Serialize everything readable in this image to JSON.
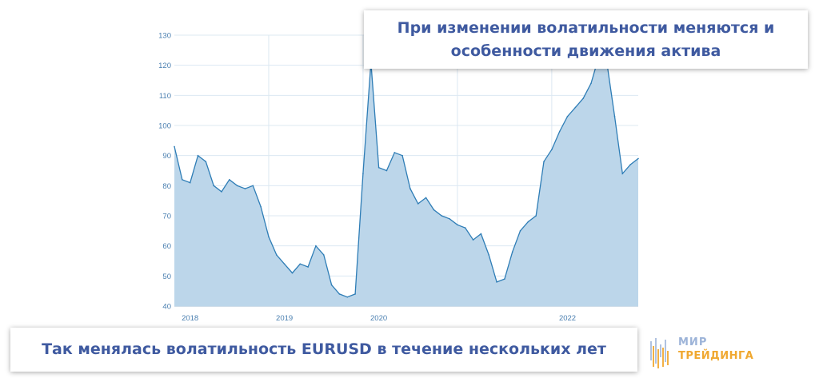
{
  "callouts": {
    "top": "При изменении волатильности меняются и особенности движения актива",
    "bottom": "Так менялась волатильность EURUSD в течение нескольких лет"
  },
  "logo": {
    "line1": "МИР",
    "line2": "ТРЕЙДИНГА"
  },
  "colors": {
    "line": "#2E7DB6",
    "fill": "#BCD6EA",
    "grid": "#DCE8F2",
    "tick_text": "#4A7FB0",
    "callout_text": "#3F5AA0"
  },
  "chart_data": {
    "type": "area",
    "title": "",
    "xlabel": "",
    "ylabel": "",
    "ylim": [
      40,
      130
    ],
    "yticks": [
      40,
      50,
      60,
      70,
      80,
      90,
      100,
      110,
      120,
      130
    ],
    "xlim": [
      "2018-01",
      "2022-12"
    ],
    "xtick_labels": [
      "2018",
      "2019",
      "2020",
      "2022"
    ],
    "grid": true,
    "x": [
      "2018-01",
      "2018-02",
      "2018-03",
      "2018-04",
      "2018-05",
      "2018-06",
      "2018-07",
      "2018-08",
      "2018-09",
      "2018-10",
      "2018-11",
      "2018-12",
      "2019-01",
      "2019-02",
      "2019-03",
      "2019-04",
      "2019-05",
      "2019-06",
      "2019-07",
      "2019-08",
      "2019-09",
      "2019-10",
      "2019-11",
      "2019-12",
      "2020-01",
      "2020-02",
      "2020-03",
      "2020-04",
      "2020-05",
      "2020-06",
      "2020-07",
      "2020-08",
      "2020-09",
      "2020-10",
      "2020-11",
      "2020-12",
      "2021-01",
      "2021-02",
      "2021-03",
      "2021-04",
      "2021-05",
      "2021-06",
      "2021-07",
      "2021-08",
      "2021-09",
      "2021-10",
      "2021-11",
      "2021-12",
      "2022-01",
      "2022-02",
      "2022-03",
      "2022-04",
      "2022-05",
      "2022-06",
      "2022-07",
      "2022-08",
      "2022-09",
      "2022-10",
      "2022-11",
      "2022-12"
    ],
    "values": [
      93,
      82,
      81,
      90,
      88,
      80,
      78,
      82,
      80,
      79,
      80,
      73,
      63,
      57,
      54,
      51,
      54,
      53,
      60,
      57,
      47,
      44,
      43,
      44,
      84,
      121,
      86,
      85,
      91,
      90,
      79,
      74,
      76,
      72,
      70,
      69,
      67,
      66,
      62,
      64,
      57,
      48,
      49,
      58,
      65,
      68,
      70,
      88,
      92,
      98,
      103,
      106,
      109,
      114,
      123,
      121,
      103,
      84,
      87,
      89
    ],
    "series": [
      {
        "values_ref": "values"
      }
    ]
  }
}
